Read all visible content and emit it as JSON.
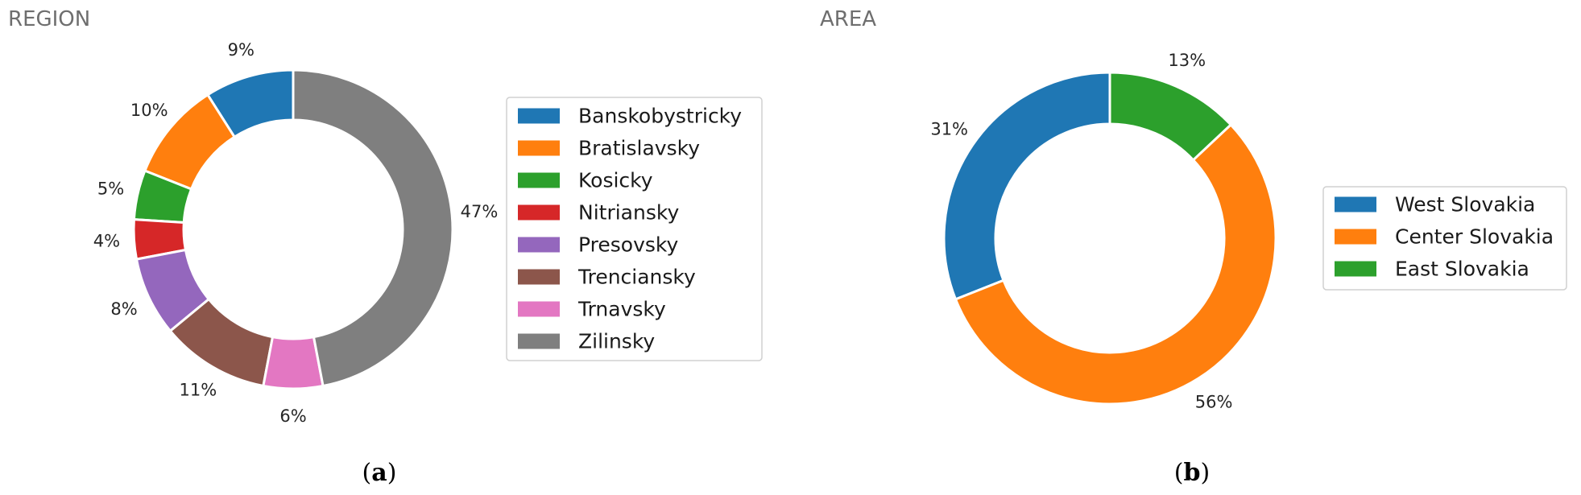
{
  "chart_data": [
    {
      "type": "pie",
      "title": "REGION",
      "caption_letter": "a",
      "categories": [
        "Banskobystricky",
        "Bratislavsky",
        "Kosicky",
        "Nitriansky",
        "Presovsky",
        "Trenciansky",
        "Trnavsky",
        "Zilinsky"
      ],
      "values": [
        9,
        10,
        5,
        4,
        8,
        11,
        6,
        47
      ],
      "labels": [
        "9%",
        "10%",
        "5%",
        "4%",
        "8%",
        "11%",
        "6%",
        "47%"
      ],
      "colors": [
        "#1f77b4",
        "#ff7f0e",
        "#2ca02c",
        "#d62728",
        "#9467bd",
        "#8c564b",
        "#e377c2",
        "#7f7f7f"
      ],
      "legend_position": "right"
    },
    {
      "type": "pie",
      "title": "AREA",
      "caption_letter": "b",
      "categories": [
        "West Slovakia",
        "Center Slovakia",
        "East Slovakia"
      ],
      "values": [
        31,
        56,
        13
      ],
      "labels": [
        "31%",
        "56%",
        "13%"
      ],
      "colors": [
        "#1f77b4",
        "#ff7f0e",
        "#2ca02c"
      ],
      "legend_position": "right"
    }
  ]
}
